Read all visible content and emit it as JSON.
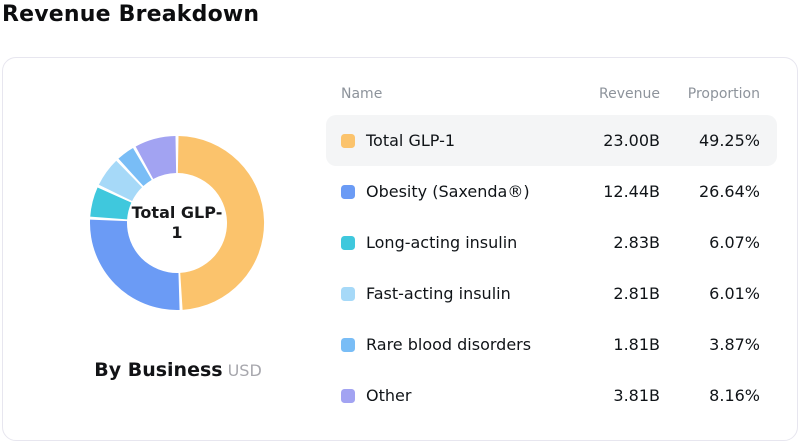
{
  "page": {
    "title": "Revenue Breakdown"
  },
  "card": {
    "center_label": "Total GLP-1",
    "footer": {
      "label": "By Business",
      "unit": "USD"
    }
  },
  "table": {
    "columns": [
      "Name",
      "Revenue",
      "Proportion"
    ],
    "rows": [
      {
        "name": "Total GLP-1",
        "revenue": "23.00B",
        "proportion": "49.25%",
        "color": "#fbc36c",
        "highlight": true
      },
      {
        "name": "Obesity (Saxenda®)",
        "revenue": "12.44B",
        "proportion": "26.64%",
        "color": "#6b9bf5",
        "highlight": false
      },
      {
        "name": "Long-acting insulin",
        "revenue": "2.83B",
        "proportion": "6.07%",
        "color": "#3fc8dd",
        "highlight": false
      },
      {
        "name": "Fast-acting insulin",
        "revenue": "2.81B",
        "proportion": "6.01%",
        "color": "#a6d9f8",
        "highlight": false
      },
      {
        "name": "Rare blood disorders",
        "revenue": "1.81B",
        "proportion": "3.87%",
        "color": "#79bdf6",
        "highlight": false
      },
      {
        "name": "Other",
        "revenue": "3.81B",
        "proportion": "8.16%",
        "color": "#a2a3f2",
        "highlight": false
      }
    ]
  },
  "chart_data": {
    "type": "pie",
    "donut": true,
    "title": "By Business",
    "unit": "USD",
    "center_label": "Total GLP-1",
    "categories": [
      "Total GLP-1",
      "Obesity (Saxenda®)",
      "Long-acting insulin",
      "Fast-acting insulin",
      "Rare blood disorders",
      "Other"
    ],
    "values": [
      23.0,
      12.44,
      2.83,
      2.81,
      1.81,
      3.81
    ],
    "proportions_pct": [
      49.25,
      26.64,
      6.07,
      6.01,
      3.87,
      8.16
    ],
    "colors": [
      "#fbc36c",
      "#6b9bf5",
      "#3fc8dd",
      "#a6d9f8",
      "#79bdf6",
      "#a2a3f2"
    ],
    "start_angle_deg": 0,
    "direction": "clockwise",
    "legend_position": "right-table"
  }
}
